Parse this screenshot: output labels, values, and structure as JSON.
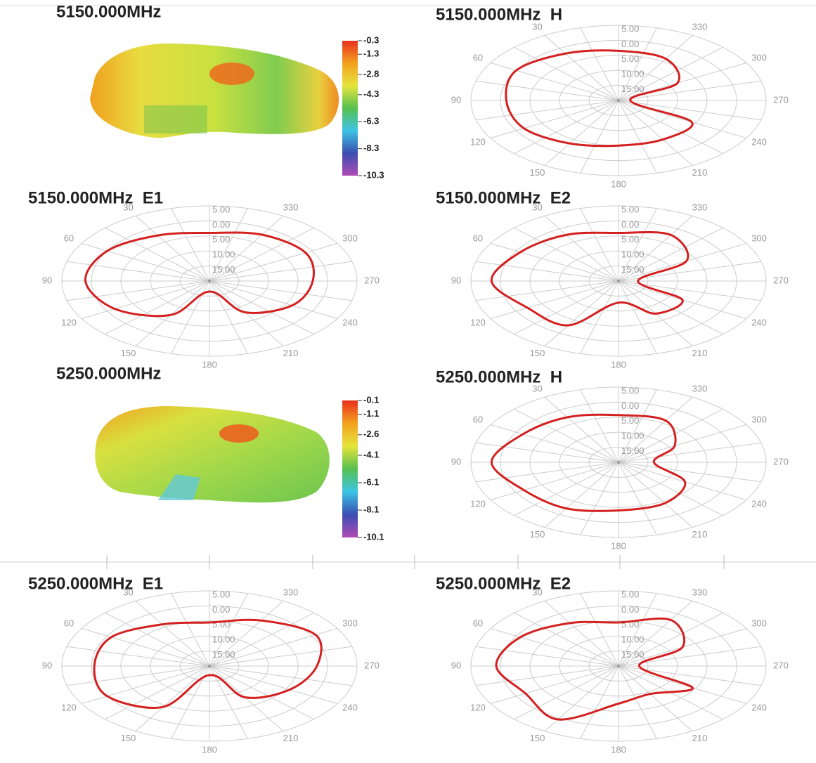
{
  "chart_data": [
    {
      "type": "surface",
      "title": "5150.000MHz",
      "colorbar_ticks": [
        -0.3,
        -1.3,
        -2.8,
        -4.3,
        -6.3,
        -8.3,
        -10.3
      ],
      "colormap": [
        "#e8301c",
        "#f2a21e",
        "#e6e43c",
        "#58c050",
        "#3cc4e4",
        "#3a4eb0",
        "#b04ab4"
      ]
    },
    {
      "type": "polar",
      "title": "5150.000MHz  H",
      "theta": [
        0,
        30,
        60,
        90,
        120,
        150,
        180,
        210,
        240,
        270,
        300,
        330
      ],
      "values": [
        -3.5,
        -2,
        0,
        -1,
        -1.5,
        -3.5,
        -5,
        -5,
        -5.7,
        -18,
        -8.5,
        -4
      ],
      "color": "#d42020",
      "rlim": [
        -20,
        5
      ],
      "rticks": [
        {
          "value": 5,
          "label": "5.00"
        },
        {
          "value": 0,
          "label": "0.00"
        },
        {
          "value": -5,
          "label": "5.00"
        },
        {
          "value": -10,
          "label": "10.00"
        },
        {
          "value": -15,
          "label": "15.00"
        }
      ],
      "thetaticks": [
        30,
        60,
        90,
        120,
        150,
        180,
        210,
        240,
        270,
        300,
        330
      ],
      "direction": "counterclockwise"
    },
    {
      "type": "polar",
      "title": "5150.000MHz  E1",
      "theta": [
        0,
        30,
        60,
        90,
        120,
        150,
        180,
        210,
        240,
        270,
        300,
        330
      ],
      "values": [
        -4,
        -2.5,
        0,
        1,
        -1.5,
        -7,
        -16.5,
        -8,
        -3.8,
        -2.5,
        -1.2,
        -2.2
      ],
      "color": "#d42020",
      "rlim": [
        -20,
        5
      ],
      "rticks": [
        {
          "value": 5,
          "label": "5.00"
        },
        {
          "value": 0,
          "label": "0.00"
        },
        {
          "value": -5,
          "label": "5.00"
        },
        {
          "value": -10,
          "label": "10.00"
        },
        {
          "value": -15,
          "label": "15.00"
        }
      ],
      "thetaticks": [
        30,
        60,
        90,
        120,
        150,
        180,
        210,
        240,
        270,
        300,
        330
      ],
      "direction": "counterclockwise"
    },
    {
      "type": "polar",
      "title": "5150.000MHz  E2",
      "theta": [
        0,
        30,
        60,
        90,
        120,
        150,
        180,
        210,
        240,
        270,
        300,
        330
      ],
      "values": [
        -4,
        -2.3,
        -0.8,
        1.5,
        -2.2,
        -3,
        -12.8,
        -7.5,
        -7.5,
        -16.7,
        -6.7,
        -2.3
      ],
      "color": "#d42020",
      "rlim": [
        -20,
        5
      ],
      "rticks": [
        {
          "value": 5,
          "label": "5.00"
        },
        {
          "value": 0,
          "label": "0.00"
        },
        {
          "value": -5,
          "label": "5.00"
        },
        {
          "value": -10,
          "label": "10.00"
        },
        {
          "value": -15,
          "label": "15.00"
        }
      ],
      "thetaticks": [
        30,
        60,
        90,
        120,
        150,
        180,
        210,
        240,
        270,
        300,
        330
      ],
      "direction": "counterclockwise"
    },
    {
      "type": "surface",
      "title": "5250.000MHz",
      "colorbar_ticks": [
        -0.1,
        -1.1,
        -2.6,
        -4.1,
        -6.1,
        -8.1,
        -10.1
      ],
      "colormap": [
        "#e8301c",
        "#f2a21e",
        "#e6e43c",
        "#58c050",
        "#3cc4e4",
        "#3a4eb0",
        "#b04ab4"
      ]
    },
    {
      "type": "polar",
      "title": "5250.000MHz  H",
      "theta": [
        0,
        30,
        60,
        90,
        120,
        150,
        180,
        210,
        240,
        270,
        300,
        330
      ],
      "values": [
        -4.3,
        -2.7,
        -1.3,
        1.5,
        -1.5,
        -2.3,
        -4,
        -4.3,
        -7,
        -14,
        -9,
        -4
      ],
      "color": "#d42020",
      "rlim": [
        -20,
        5
      ],
      "rticks": [
        {
          "value": 5,
          "label": "5.00"
        },
        {
          "value": 0,
          "label": "0.00"
        },
        {
          "value": -5,
          "label": "5.00"
        },
        {
          "value": -10,
          "label": "10.00"
        },
        {
          "value": -15,
          "label": "15.00"
        }
      ],
      "thetaticks": [
        30,
        60,
        90,
        120,
        150,
        180,
        210,
        240,
        270,
        300,
        330
      ],
      "direction": "counterclockwise"
    },
    {
      "type": "polar",
      "title": "5250.000MHz  E1",
      "theta": [
        0,
        30,
        60,
        90,
        120,
        150,
        180,
        210,
        240,
        270,
        300,
        330
      ],
      "values": [
        -5.5,
        -4,
        -0.8,
        -0.5,
        0,
        -4.3,
        -17,
        -8,
        -4.3,
        -1.8,
        0.75,
        -2.5
      ],
      "color": "#d42020",
      "rlim": [
        -20,
        5
      ],
      "rticks": [
        {
          "value": 5,
          "label": "5.00"
        },
        {
          "value": 0,
          "label": "0.00"
        },
        {
          "value": -5,
          "label": "5.00"
        },
        {
          "value": -10,
          "label": "10.00"
        },
        {
          "value": -15,
          "label": "15.00"
        }
      ],
      "thetaticks": [
        30,
        60,
        90,
        120,
        150,
        180,
        210,
        240,
        270,
        300,
        330
      ],
      "direction": "counterclockwise"
    },
    {
      "type": "polar",
      "title": "5250.000MHz  E2",
      "theta": [
        0,
        30,
        60,
        90,
        120,
        150,
        180,
        210,
        240,
        270,
        300,
        330
      ],
      "values": [
        -5.5,
        -3.5,
        -0.8,
        0.7,
        -1.8,
        0.5,
        -7.5,
        -9.3,
        -5.5,
        -16.5,
        -7.5,
        -2.3
      ],
      "color": "#d42020",
      "rlim": [
        -20,
        5
      ],
      "rticks": [
        {
          "value": 5,
          "label": "5.00"
        },
        {
          "value": 0,
          "label": "0.00"
        },
        {
          "value": -5,
          "label": "5.00"
        },
        {
          "value": -10,
          "label": "10.00"
        },
        {
          "value": -15,
          "label": "15.00"
        }
      ],
      "thetaticks": [
        30,
        60,
        90,
        120,
        150,
        180,
        210,
        240,
        270,
        300,
        330
      ],
      "direction": "counterclockwise"
    }
  ]
}
